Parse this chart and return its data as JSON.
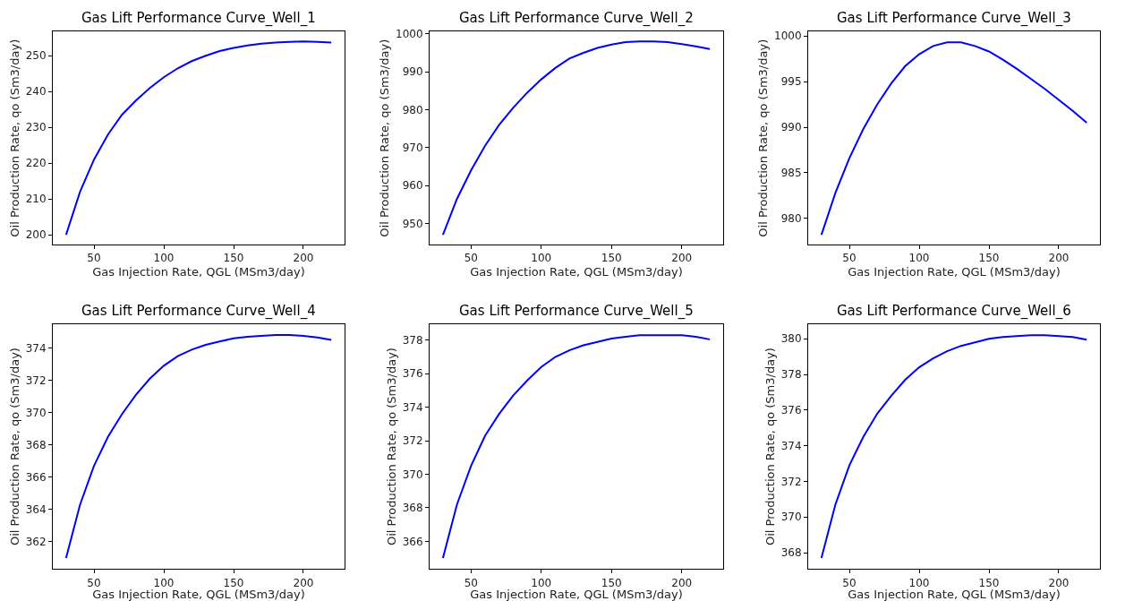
{
  "chart_data": [
    {
      "type": "line",
      "title": "Gas Lift Performance Curve_Well_1",
      "xlabel": "Gas Injection Rate, QGL (MSm3/day)",
      "ylabel": "Oil Production Rate, qo (Sm3/day)",
      "x": [
        30,
        40,
        50,
        60,
        70,
        80,
        90,
        100,
        110,
        120,
        130,
        140,
        150,
        160,
        170,
        180,
        190,
        200,
        210,
        220
      ],
      "series": [
        {
          "color": "#0000ff",
          "values": [
            200,
            212,
            221,
            228,
            233.5,
            237.5,
            241,
            244,
            246.5,
            248.5,
            250,
            251.3,
            252.2,
            252.9,
            253.4,
            253.7,
            253.9,
            254,
            253.9,
            253.7
          ]
        }
      ],
      "xlim": [
        20.5,
        229.5
      ],
      "xticks": [
        50,
        100,
        150,
        200
      ],
      "ylim": [
        197.3,
        256.7
      ],
      "yticks": [
        200,
        210,
        220,
        230,
        240,
        250
      ]
    },
    {
      "type": "line",
      "title": "Gas Lift Performance Curve_Well_2",
      "xlabel": "Gas Injection Rate, QGL (MSm3/day)",
      "ylabel": "Oil Production Rate, qo (Sm3/day)",
      "x": [
        30,
        40,
        50,
        60,
        70,
        80,
        90,
        100,
        110,
        120,
        130,
        140,
        150,
        160,
        170,
        180,
        190,
        200,
        210,
        220
      ],
      "series": [
        {
          "color": "#0000ff",
          "values": [
            947,
            956.5,
            964,
            970.5,
            976,
            980.5,
            984.5,
            988,
            991,
            993.5,
            995,
            996.3,
            997.2,
            997.8,
            998,
            998,
            997.8,
            997.3,
            996.7,
            996
          ]
        }
      ],
      "xlim": [
        20.5,
        229.5
      ],
      "xticks": [
        50,
        100,
        150,
        200
      ],
      "ylim": [
        944.45,
        1000.55
      ],
      "yticks": [
        950,
        960,
        970,
        980,
        990,
        1000
      ]
    },
    {
      "type": "line",
      "title": "Gas Lift Performance Curve_Well_3",
      "xlabel": "Gas Injection Rate, QGL (MSm3/day)",
      "ylabel": "Oil Production Rate, qo (Sm3/day)",
      "x": [
        30,
        40,
        50,
        60,
        70,
        80,
        90,
        100,
        110,
        120,
        130,
        140,
        150,
        160,
        170,
        180,
        190,
        200,
        210,
        220
      ],
      "series": [
        {
          "color": "#0000ff",
          "values": [
            978.2,
            982.8,
            986.6,
            989.8,
            992.5,
            994.8,
            996.7,
            998.0,
            998.9,
            999.3,
            999.3,
            998.9,
            998.3,
            997.4,
            996.4,
            995.3,
            994.2,
            993.0,
            991.8,
            990.5
          ]
        }
      ],
      "xlim": [
        20.5,
        229.5
      ],
      "xticks": [
        50,
        100,
        150,
        200
      ],
      "ylim": [
        977.14,
        1000.46
      ],
      "yticks": [
        980,
        985,
        990,
        995,
        1000
      ]
    },
    {
      "type": "line",
      "title": "Gas Lift Performance Curve_Well_4",
      "xlabel": "Gas Injection Rate, QGL (MSm3/day)",
      "ylabel": "Oil Production Rate, qo (Sm3/day)",
      "x": [
        30,
        40,
        50,
        60,
        70,
        80,
        90,
        100,
        110,
        120,
        130,
        140,
        150,
        160,
        170,
        180,
        190,
        200,
        210,
        220
      ],
      "series": [
        {
          "color": "#0000ff",
          "values": [
            361,
            364.3,
            366.7,
            368.5,
            369.9,
            371.1,
            372.1,
            372.9,
            373.5,
            373.9,
            374.2,
            374.4,
            374.6,
            374.7,
            374.75,
            374.8,
            374.8,
            374.75,
            374.65,
            374.5
          ]
        }
      ],
      "xlim": [
        20.5,
        229.5
      ],
      "xticks": [
        50,
        100,
        150,
        200
      ],
      "ylim": [
        360.31,
        375.49
      ],
      "yticks": [
        362,
        364,
        366,
        368,
        370,
        372,
        374
      ]
    },
    {
      "type": "line",
      "title": "Gas Lift Performance Curve_Well_5",
      "xlabel": "Gas Injection Rate, QGL (MSm3/day)",
      "ylabel": "Oil Production Rate, qo (Sm3/day)",
      "x": [
        30,
        40,
        50,
        60,
        70,
        80,
        90,
        100,
        110,
        120,
        130,
        140,
        150,
        160,
        170,
        180,
        190,
        200,
        210,
        220
      ],
      "series": [
        {
          "color": "#0000ff",
          "values": [
            365.0,
            368.2,
            370.5,
            372.3,
            373.6,
            374.7,
            375.6,
            376.4,
            377.0,
            377.4,
            377.7,
            377.9,
            378.1,
            378.2,
            378.3,
            378.3,
            378.3,
            378.3,
            378.2,
            378.05
          ]
        }
      ],
      "xlim": [
        20.5,
        229.5
      ],
      "xticks": [
        50,
        100,
        150,
        200
      ],
      "ylim": [
        364.34,
        378.97
      ],
      "yticks": [
        366,
        368,
        370,
        372,
        374,
        376,
        378
      ]
    },
    {
      "type": "line",
      "title": "Gas Lift Performance Curve_Well_6",
      "xlabel": "Gas Injection Rate, QGL (MSm3/day)",
      "ylabel": "Oil Production Rate, qo (Sm3/day)",
      "x": [
        30,
        40,
        50,
        60,
        70,
        80,
        90,
        100,
        110,
        120,
        130,
        140,
        150,
        160,
        170,
        180,
        190,
        200,
        210,
        220
      ],
      "series": [
        {
          "color": "#0000ff",
          "values": [
            367.7,
            370.7,
            372.9,
            374.5,
            375.8,
            376.8,
            377.7,
            378.4,
            378.9,
            379.3,
            379.6,
            379.8,
            380.0,
            380.1,
            380.15,
            380.2,
            380.2,
            380.15,
            380.1,
            379.95
          ]
        }
      ],
      "xlim": [
        20.5,
        229.5
      ],
      "xticks": [
        50,
        100,
        150,
        200
      ],
      "ylim": [
        367.08,
        380.83
      ],
      "yticks": [
        368,
        370,
        372,
        374,
        376,
        378,
        380
      ]
    }
  ]
}
